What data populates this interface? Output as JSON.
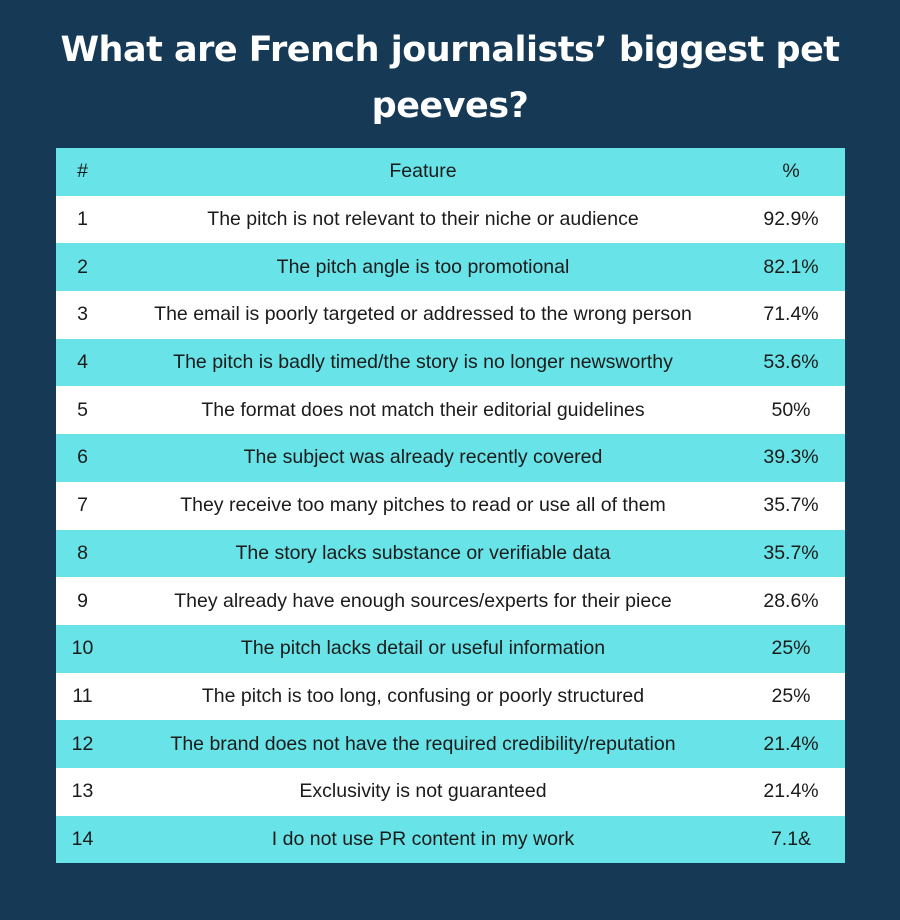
{
  "title": "What are French journalists’ biggest pet peeves?",
  "chart_data": {
    "type": "table",
    "columns": [
      "#",
      "Feature",
      "%"
    ],
    "rows": [
      {
        "num": "1",
        "feature": "The pitch is not relevant to their niche or audience",
        "pct": "92.9%"
      },
      {
        "num": "2",
        "feature": "The pitch angle is too promotional",
        "pct": "82.1%"
      },
      {
        "num": "3",
        "feature": "The email is poorly targeted or addressed to the wrong person",
        "pct": "71.4%"
      },
      {
        "num": "4",
        "feature": "The pitch is badly timed/the story is no longer newsworthy",
        "pct": "53.6%"
      },
      {
        "num": "5",
        "feature": "The format does not match their editorial guidelines",
        "pct": "50%"
      },
      {
        "num": "6",
        "feature": "The subject was already recently covered",
        "pct": "39.3%"
      },
      {
        "num": "7",
        "feature": "They receive too many pitches to read or use all of them",
        "pct": "35.7%"
      },
      {
        "num": "8",
        "feature": "The story lacks substance or verifiable data",
        "pct": "35.7%"
      },
      {
        "num": "9",
        "feature": "They already have enough sources/experts for their piece",
        "pct": "28.6%"
      },
      {
        "num": "10",
        "feature": "The pitch lacks detail or useful information",
        "pct": "25%"
      },
      {
        "num": "11",
        "feature": "The pitch is too long, confusing or poorly structured",
        "pct": "25%"
      },
      {
        "num": "12",
        "feature": "The brand does not have the required credibility/reputation",
        "pct": "21.4%"
      },
      {
        "num": "13",
        "feature": "Exclusivity is not guaranteed",
        "pct": "21.4%"
      },
      {
        "num": "14",
        "feature": "I do not use PR content in my work",
        "pct": "7.1&"
      }
    ]
  },
  "colors": {
    "background": "#163a55",
    "accent_row": "#68e3e7",
    "plain_row": "#ffffff",
    "title_text": "#ffffff",
    "cell_text": "#1b1b1b"
  }
}
